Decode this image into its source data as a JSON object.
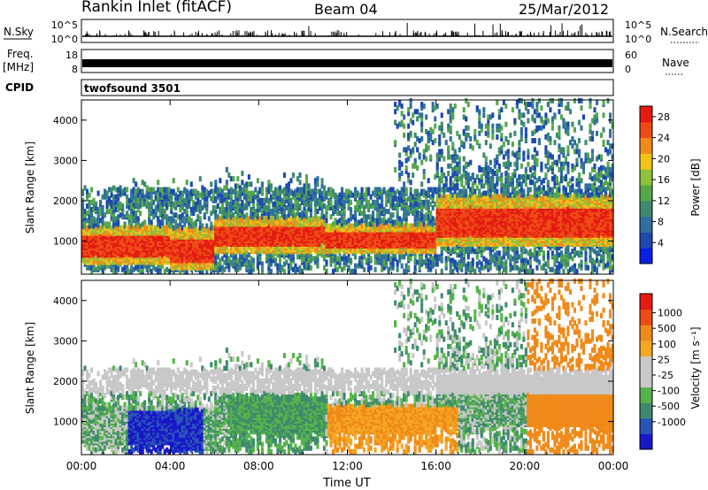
{
  "header": {
    "title": "Rankin Inlet (fitACF)",
    "beam": "Beam 04",
    "date": "25/Mar/2012"
  },
  "left_labels": {
    "nsky": "N.Sky",
    "freq": "Freq.",
    "freq_unit": "[MHz]",
    "cpid": "CPID"
  },
  "right_labels": {
    "nsearch": "N.Search",
    "nave": "Nave"
  },
  "cpid_text": "twofsound 3501",
  "colors": {
    "power_scale": [
      "#0a1ee6",
      "#1d49b0",
      "#2f6fa0",
      "#3f8a6e",
      "#55a84a",
      "#8fc23c",
      "#f2c419",
      "#f08a1a",
      "#ee4a16",
      "#e31b12"
    ],
    "velocity_scale": [
      "#1818c8",
      "#2a55b8",
      "#3f8a6e",
      "#55b34a",
      "#c8c8c8",
      "#c8c8c8",
      "#f5a623",
      "#f08a1a",
      "#ee4a16",
      "#e31b12"
    ]
  },
  "chart_data": [
    {
      "type": "line",
      "panel": "nsky-nsearch",
      "ytick_labels_left": [
        "10^5",
        "10^0"
      ],
      "ytick_labels_right": [
        "10^5",
        "10^0"
      ],
      "ylim_log10": [
        0,
        5
      ],
      "y_scale": "log"
    },
    {
      "type": "line",
      "panel": "freq-nave",
      "ytick_labels_left": [
        "18",
        "8"
      ],
      "ytick_labels_right": [
        "60",
        "0"
      ],
      "freq_ylim": [
        8,
        18
      ],
      "nave_ylim": [
        0,
        60
      ]
    },
    {
      "type": "heatmap",
      "panel": "power",
      "ylabel": "Slant Range [km]",
      "yticks": [
        1000,
        2000,
        3000,
        4000
      ],
      "ylim": [
        180,
        4500
      ],
      "xlim_hours": [
        0,
        24
      ],
      "colorbar": {
        "label": "Power [dB]",
        "ticks": [
          4,
          8,
          12,
          16,
          20,
          24,
          28
        ],
        "range": [
          0,
          30
        ]
      }
    },
    {
      "type": "heatmap",
      "panel": "velocity",
      "ylabel": "Slant Range [km]",
      "xlabel": "Time UT",
      "yticks": [
        1000,
        2000,
        3000,
        4000
      ],
      "ylim": [
        180,
        4500
      ],
      "xlim_hours": [
        0,
        24
      ],
      "xtick_labels": [
        "00:00",
        "04:00",
        "08:00",
        "12:00",
        "16:00",
        "20:00",
        "00:00"
      ],
      "colorbar": {
        "label": "Velocity [m s⁻¹]",
        "tick_labels": [
          "1000",
          "500",
          "100",
          "25",
          "-25",
          "-100",
          "-500",
          "-1000"
        ]
      }
    }
  ]
}
